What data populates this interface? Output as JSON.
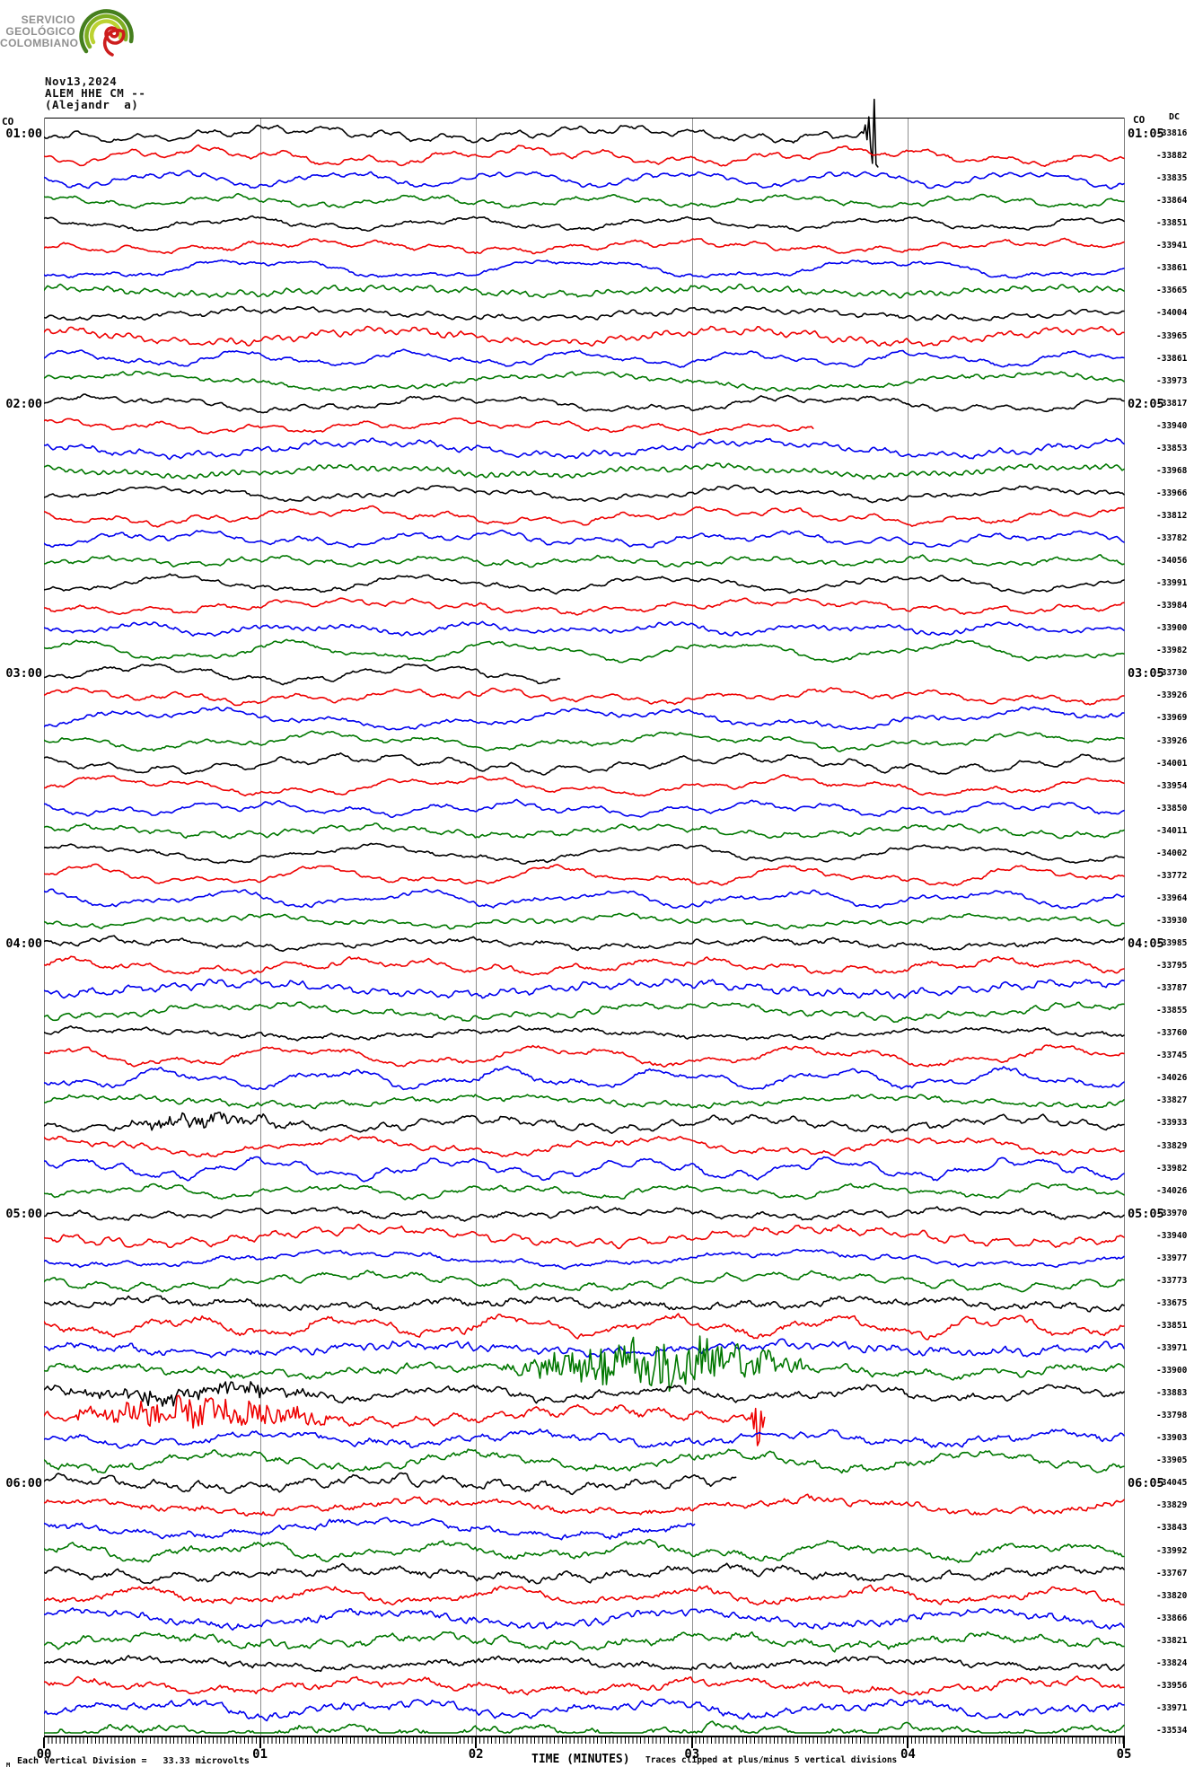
{
  "logo": {
    "lines": [
      "SERVICIO",
      "GEOLÓGICO",
      "COLOMBIANO"
    ],
    "arc_colors": [
      "#457f1e",
      "#7fae22",
      "#bcd231"
    ],
    "spiral_color": "#cd1d1d",
    "text_color": "#8f8f8f"
  },
  "header": {
    "date": "Nov13,2024",
    "station": "ALEM HHE CM --",
    "operator": "(Alejandr  a)"
  },
  "plot": {
    "co_left": "CO",
    "co_right": "CO",
    "dc_header": "DC"
  },
  "footer": {
    "sub_marker": "M",
    "division_note": "Each Vertical Division =   33.33 microvolts",
    "axis_title": "TIME (MINUTES)",
    "clip_note": "Traces clipped at plus/minus 5 vertical divisions"
  },
  "chart_data": {
    "type": "seismogram",
    "title": "ALEM HHE CM -- helicorder, Nov13,2024",
    "xlabel": "TIME (MINUTES)",
    "x_ticks": [
      "00",
      "01",
      "02",
      "03",
      "04",
      "05"
    ],
    "minutes_per_line": 5,
    "lines_per_hour": 12,
    "n_lines": 72,
    "start_time": "01:00",
    "end_time": "07:00",
    "hour_labels_left": [
      "01:00",
      "02:00",
      "03:00",
      "04:00",
      "05:00",
      "06:00"
    ],
    "hour_labels_right": [
      "01:05",
      "02:05",
      "03:05",
      "04:05",
      "05:05",
      "06:05"
    ],
    "vertical_division_microvolts": 33.33,
    "clip_divisions": 5,
    "trace_color_cycle": [
      "#000000",
      "#ee0000",
      "#0000ee",
      "#007700"
    ],
    "dc_values": [
      -33816,
      -33882,
      -33835,
      -33864,
      -33851,
      -33941,
      -33861,
      -33665,
      -34004,
      -33965,
      -33861,
      -33973,
      -33817,
      -33940,
      -33853,
      -33968,
      -33966,
      -33812,
      -33782,
      -34056,
      -33991,
      -33984,
      -33900,
      -33982,
      -33730,
      -33926,
      -33969,
      -33926,
      -34001,
      -33954,
      -33850,
      -34011,
      -34002,
      -33772,
      -33964,
      -33930,
      -33985,
      -33795,
      -33787,
      -33855,
      -33760,
      -33745,
      -34026,
      -33827,
      -33933,
      -33829,
      -33982,
      -34026,
      -33970,
      -33940,
      -33977,
      -33773,
      -33675,
      -33851,
      -33971,
      -33900,
      -33883,
      -33798,
      -33903,
      -33905,
      -34045,
      -33829,
      -33843,
      -33992,
      -33767,
      -33820,
      -33866,
      -33821,
      -33824,
      -33956,
      -33971,
      -33534
    ],
    "events": [
      {
        "line": 0,
        "x0": 0.762,
        "x1": 0.792,
        "type": "spike-cluster",
        "amp": 58,
        "note": "clipped event 01:04"
      },
      {
        "line": 13,
        "x0": 0.715,
        "x1": 0.726,
        "type": "spike",
        "amp": 22
      },
      {
        "line": 24,
        "x0": 0.48,
        "x1": 0.492,
        "type": "spike",
        "amp": 18
      },
      {
        "line": 55,
        "x0": 0.415,
        "x1": 0.72,
        "type": "burst",
        "amp": 27,
        "note": "green high-frequency burst"
      },
      {
        "line": 56,
        "x0": 0.0,
        "x1": 0.28,
        "type": "noise",
        "amp": 8
      },
      {
        "line": 57,
        "x0": 0.005,
        "x1": 0.29,
        "type": "noise",
        "amp": 15
      },
      {
        "line": 57,
        "x0": 0.652,
        "x1": 0.668,
        "type": "spike",
        "amp": 32
      },
      {
        "line": 57,
        "x0": 0.81,
        "x1": 0.92,
        "type": "noise",
        "amp": 13
      },
      {
        "line": 60,
        "x0": 0.638,
        "x1": 0.66,
        "type": "spike",
        "amp": 22
      },
      {
        "line": 60,
        "x0": 0.828,
        "x1": 0.848,
        "type": "spike",
        "amp": 16
      },
      {
        "line": 62,
        "x0": 0.606,
        "x1": 0.642,
        "type": "spike-cluster",
        "amp": 30
      },
      {
        "line": 44,
        "x0": 0.05,
        "x1": 0.24,
        "type": "noise",
        "amp": 6
      }
    ]
  }
}
